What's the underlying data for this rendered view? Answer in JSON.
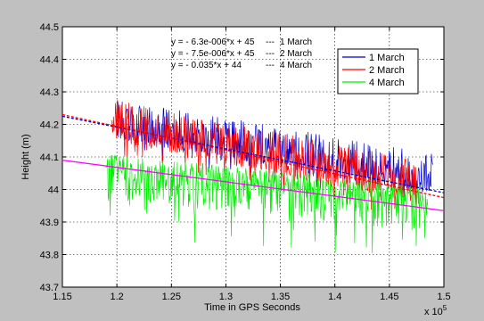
{
  "chart_data": {
    "type": "line",
    "title": "",
    "xlabel": "Time in GPS Seconds",
    "ylabel": "Height (m)",
    "x_exponent_label": "x 10",
    "x_exponent_power": "5",
    "xlim": [
      1.15,
      1.5
    ],
    "ylim": [
      43.7,
      44.5
    ],
    "x_scale_factor": 100000,
    "xticks": [
      "1.15",
      "1.2",
      "1.25",
      "1.3",
      "1.35",
      "1.4",
      "1.45",
      "1.5"
    ],
    "yticks": [
      "43.7",
      "43.8",
      "43.9",
      "44",
      "44.1",
      "44.2",
      "44.3",
      "44.4",
      "44.5"
    ],
    "grid": true,
    "legend_position": "top-right",
    "series": [
      {
        "name": "1 March",
        "color": "#0000cc",
        "x_range": [
          1.2,
          1.49
        ],
        "trend_start": 44.19,
        "trend_end": 44.02,
        "noise_up": 0.09,
        "noise_down": 0.08
      },
      {
        "name": "2 March",
        "color": "#ff0000",
        "x_range": [
          1.195,
          1.475
        ],
        "trend_start": 44.19,
        "trend_end": 44.0,
        "noise_up": 0.09,
        "noise_down": 0.09
      },
      {
        "name": "4 March",
        "color": "#00ee00",
        "x_range": [
          1.19,
          1.485
        ],
        "trend_start": 44.06,
        "trend_end": 43.96,
        "noise_up": 0.05,
        "noise_down": 0.2
      }
    ],
    "trend_lines": [
      {
        "equation": "y = - 6.3e-006*x + 45",
        "label": "1 March",
        "color": "#0000cc",
        "dashed": true,
        "x": [
          1.15,
          1.5
        ],
        "y": [
          44.225,
          43.99
        ]
      },
      {
        "equation": "y = - 7.5e-006*x + 45",
        "label": "2 March",
        "color": "#ff0000",
        "dashed": true,
        "x": [
          1.15,
          1.5
        ],
        "y": [
          44.23,
          43.975
        ]
      },
      {
        "equation": "y = - 0.035*x + 44",
        "label": "4 March",
        "color": "#ff00ff",
        "dashed": false,
        "x": [
          1.15,
          1.5
        ],
        "y": [
          44.09,
          43.935
        ]
      }
    ],
    "equation_separator": "---"
  }
}
